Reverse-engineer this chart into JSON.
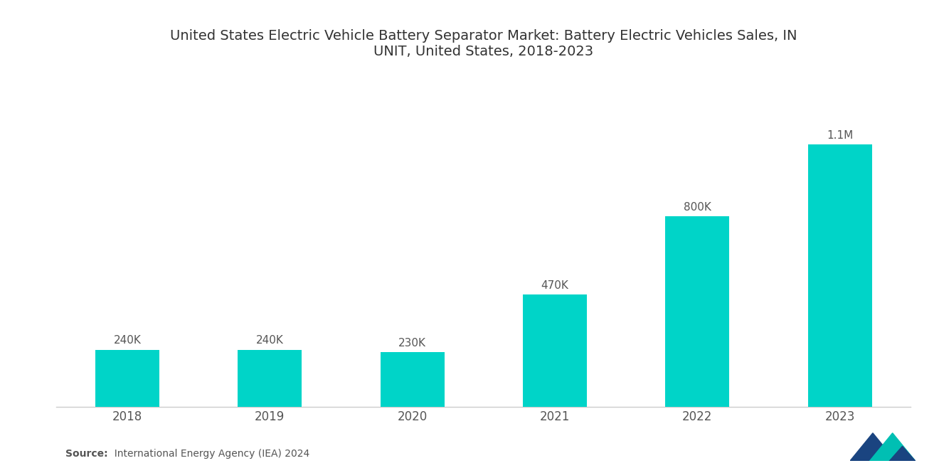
{
  "title": "United States Electric Vehicle Battery Separator Market: Battery Electric Vehicles Sales, IN\nUNIT, United States, 2018-2023",
  "categories": [
    "2018",
    "2019",
    "2020",
    "2021",
    "2022",
    "2023"
  ],
  "values": [
    240000,
    240000,
    230000,
    470000,
    800000,
    1100000
  ],
  "labels": [
    "240K",
    "240K",
    "230K",
    "470K",
    "800K",
    "1.1M"
  ],
  "bar_color": "#00D4C8",
  "background_color": "#ffffff",
  "title_fontsize": 14,
  "label_fontsize": 11,
  "tick_fontsize": 12,
  "source_bold": "Source:",
  "source_normal": "  International Energy Agency (IEA) 2024",
  "ylim": [
    0,
    1350000
  ],
  "bar_width": 0.45
}
